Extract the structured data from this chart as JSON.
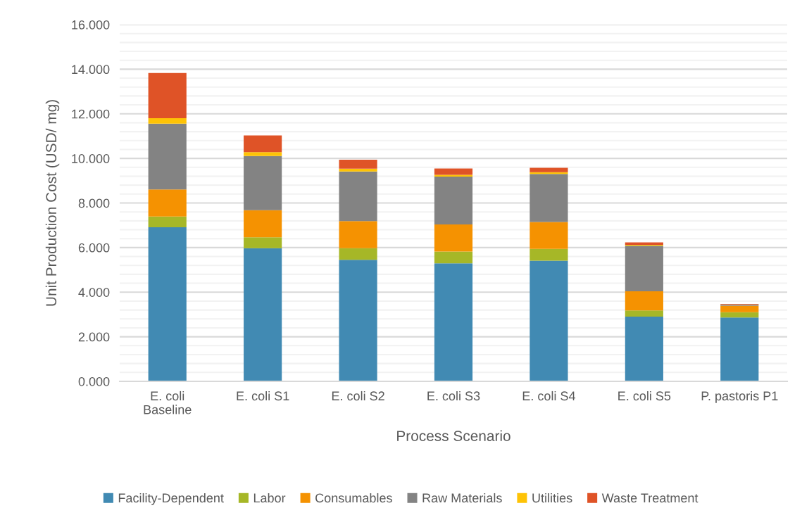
{
  "chart_data": {
    "type": "bar",
    "stacked": true,
    "xlabel": "Process Scenario",
    "ylabel": "Unit Production Cost (USD/ mg)",
    "categories": [
      "E. coli\nBaseline",
      "E. coli S1",
      "E. coli S2",
      "E. coli S3",
      "E. coli S4",
      "E. coli S5",
      "P. pastoris P1"
    ],
    "series": [
      {
        "name": "Facility-Dependent",
        "color": "#418ab3",
        "values": [
          6.91,
          5.97,
          5.45,
          5.29,
          5.41,
          2.9,
          2.86
        ]
      },
      {
        "name": "Labor",
        "color": "#a6b727",
        "values": [
          0.48,
          0.49,
          0.52,
          0.53,
          0.53,
          0.28,
          0.24
        ]
      },
      {
        "name": "Consumables",
        "color": "#f59201",
        "values": [
          1.22,
          1.22,
          1.22,
          1.22,
          1.21,
          0.86,
          0.29
        ]
      },
      {
        "name": "Raw Materials",
        "color": "#838383",
        "values": [
          2.95,
          2.43,
          2.22,
          2.14,
          2.15,
          2.04,
          0.05
        ]
      },
      {
        "name": "Utilities",
        "color": "#fec306",
        "values": [
          0.24,
          0.17,
          0.13,
          0.08,
          0.08,
          0.04,
          0.01
        ]
      },
      {
        "name": "Waste Treatment",
        "color": "#df5327",
        "values": [
          2.03,
          0.75,
          0.4,
          0.29,
          0.2,
          0.11,
          0.02
        ]
      }
    ],
    "ylim": [
      0,
      16
    ],
    "yticks": [
      {
        "value": 0,
        "label": "0.000"
      },
      {
        "value": 0.4,
        "label": null
      },
      {
        "value": 0.8,
        "label": null
      },
      {
        "value": 1.2,
        "label": null
      },
      {
        "value": 1.6,
        "label": null
      },
      {
        "value": 2,
        "label": "2.000"
      },
      {
        "value": 2.4,
        "label": null
      },
      {
        "value": 2.8,
        "label": null
      },
      {
        "value": 3.2,
        "label": null
      },
      {
        "value": 3.6,
        "label": null
      },
      {
        "value": 4,
        "label": "4.000"
      },
      {
        "value": 4.4,
        "label": null
      },
      {
        "value": 4.8,
        "label": null
      },
      {
        "value": 5.2,
        "label": null
      },
      {
        "value": 5.6,
        "label": null
      },
      {
        "value": 6,
        "label": "6.000"
      },
      {
        "value": 6.4,
        "label": null
      },
      {
        "value": 6.8,
        "label": null
      },
      {
        "value": 7.2,
        "label": null
      },
      {
        "value": 7.6,
        "label": null
      },
      {
        "value": 8,
        "label": "8.000"
      },
      {
        "value": 8.4,
        "label": null
      },
      {
        "value": 8.8,
        "label": null
      },
      {
        "value": 9.2,
        "label": null
      },
      {
        "value": 9.6,
        "label": null
      },
      {
        "value": 10,
        "label": "10.000"
      },
      {
        "value": 10.4,
        "label": null
      },
      {
        "value": 10.8,
        "label": null
      },
      {
        "value": 11.2,
        "label": null
      },
      {
        "value": 11.6,
        "label": null
      },
      {
        "value": 12,
        "label": "12.000"
      },
      {
        "value": 12.4,
        "label": null
      },
      {
        "value": 12.8,
        "label": null
      },
      {
        "value": 13.2,
        "label": null
      },
      {
        "value": 13.6,
        "label": null
      },
      {
        "value": 14,
        "label": "14.000"
      },
      {
        "value": 14.4,
        "label": null
      },
      {
        "value": 14.8,
        "label": null
      },
      {
        "value": 15.2,
        "label": null
      },
      {
        "value": 15.6,
        "label": null
      },
      {
        "value": 16,
        "label": "16.000"
      }
    ],
    "grid": "y",
    "legend": "bottom"
  }
}
